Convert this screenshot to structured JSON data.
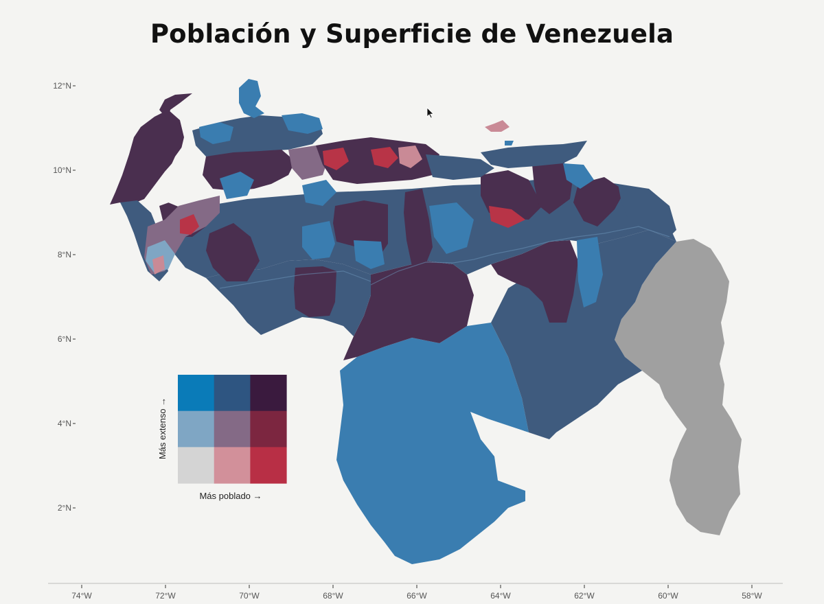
{
  "title": "Población y Superficie de Venezuela",
  "axes": {
    "latitude_ticks": [
      "12°N",
      "10°N",
      "8°N",
      "6°N",
      "4°N",
      "2°N"
    ],
    "longitude_ticks": [
      "74°W",
      "72°W",
      "70°W",
      "68°W",
      "66°W",
      "64°W",
      "62°W",
      "60°W",
      "58°W"
    ]
  },
  "legend": {
    "x_label": "Más poblado →",
    "y_label": "Más extenso →",
    "grid_colors": [
      [
        "#0a7bb8",
        "#2e5581",
        "#3a1a3e"
      ],
      [
        "#7fa6c4",
        "#846a86",
        "#7c2640"
      ],
      [
        "#d4d4d4",
        "#d2909a",
        "#b82f45"
      ]
    ]
  },
  "colors": {
    "large_sparse": "#3a7db0",
    "large_mid": "#3f5b7e",
    "large_dense": "#4a2f4f",
    "disputed_territory": "#a0a0a0",
    "small_dense": "#b83447",
    "small_mid": "#c98a96"
  }
}
